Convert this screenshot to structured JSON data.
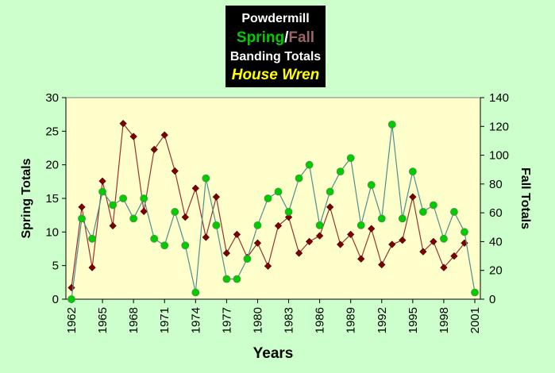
{
  "chart_data": {
    "type": "line",
    "title": {
      "line1": "Powdermill",
      "spring_word": "Spring",
      "separator": "/",
      "fall_word": "Fall",
      "line3": "Banding Totals",
      "species": "House Wren"
    },
    "xlabel": "Years",
    "ylabel_left": "Spring Totals",
    "ylabel_right": "Fall Totals",
    "x_tick_labels": [
      "1962",
      "1965",
      "1968",
      "1971",
      "1974",
      "1977",
      "1980",
      "1983",
      "1986",
      "1989",
      "1992",
      "1995",
      "1998",
      "2001"
    ],
    "x_tick_years": [
      1962,
      1965,
      1968,
      1971,
      1974,
      1977,
      1980,
      1983,
      1986,
      1989,
      1992,
      1995,
      1998,
      2001
    ],
    "y_left_ticks": [
      "0",
      "5",
      "10",
      "15",
      "20",
      "25",
      "30"
    ],
    "y_right_ticks": [
      "0",
      "20",
      "40",
      "60",
      "80",
      "100",
      "120",
      "140"
    ],
    "ylim_left": [
      0,
      30
    ],
    "ylim_right": [
      0,
      140
    ],
    "xlim": [
      1962,
      2001
    ],
    "grid": false,
    "legend": "none",
    "colors": {
      "background": "#ccffcc",
      "plot_area": "#ffffcc",
      "spring": "#00cc00",
      "spring_line": "#4d8f8f",
      "fall": "#800000",
      "fall_line": "#993333",
      "title_box": "#000000",
      "title_white": "#ffffff",
      "title_fall": "#996666",
      "title_species": "#ffff00"
    },
    "series": [
      {
        "key": "spring",
        "axis": "left",
        "values": [
          [
            1962,
            0
          ],
          [
            1963,
            12
          ],
          [
            1964,
            9
          ],
          [
            1965,
            16
          ],
          [
            1966,
            14
          ],
          [
            1967,
            15
          ],
          [
            1968,
            12
          ],
          [
            1969,
            15
          ],
          [
            1970,
            9
          ],
          [
            1971,
            8
          ],
          [
            1972,
            13
          ],
          [
            1973,
            8
          ],
          [
            1974,
            1
          ],
          [
            1975,
            18
          ],
          [
            1976,
            11
          ],
          [
            1977,
            3
          ],
          [
            1978,
            3
          ],
          [
            1979,
            6
          ],
          [
            1980,
            11
          ],
          [
            1981,
            15
          ],
          [
            1982,
            16
          ],
          [
            1983,
            13
          ],
          [
            1984,
            18
          ],
          [
            1985,
            20
          ],
          [
            1986,
            11
          ],
          [
            1987,
            16
          ],
          [
            1988,
            19
          ],
          [
            1989,
            21
          ],
          [
            1990,
            11
          ],
          [
            1991,
            17
          ],
          [
            1992,
            12
          ],
          [
            1993,
            26
          ],
          [
            1994,
            12
          ],
          [
            1995,
            19
          ],
          [
            1996,
            13
          ],
          [
            1997,
            14
          ],
          [
            1998,
            9
          ],
          [
            1999,
            13
          ],
          [
            2000,
            10
          ],
          [
            2001,
            1
          ]
        ]
      },
      {
        "key": "fall",
        "axis": "right",
        "values": [
          [
            1962,
            8
          ],
          [
            1963,
            64
          ],
          [
            1964,
            22
          ],
          [
            1965,
            82
          ],
          [
            1966,
            51
          ],
          [
            1967,
            122
          ],
          [
            1968,
            113
          ],
          [
            1969,
            61
          ],
          [
            1970,
            104
          ],
          [
            1971,
            114
          ],
          [
            1972,
            89
          ],
          [
            1973,
            57
          ],
          [
            1974,
            77
          ],
          [
            1975,
            43
          ],
          [
            1976,
            71
          ],
          [
            1977,
            32
          ],
          [
            1978,
            45
          ],
          [
            1979,
            29
          ],
          [
            1980,
            39
          ],
          [
            1981,
            23
          ],
          [
            1982,
            51
          ],
          [
            1983,
            57
          ],
          [
            1984,
            32
          ],
          [
            1985,
            40
          ],
          [
            1986,
            44
          ],
          [
            1987,
            64
          ],
          [
            1988,
            38
          ],
          [
            1989,
            45
          ],
          [
            1990,
            28
          ],
          [
            1991,
            49
          ],
          [
            1992,
            24
          ],
          [
            1993,
            38
          ],
          [
            1994,
            41
          ],
          [
            1995,
            71
          ],
          [
            1996,
            33
          ],
          [
            1997,
            40
          ],
          [
            1998,
            22
          ],
          [
            1999,
            30
          ],
          [
            2000,
            39
          ]
        ]
      }
    ]
  }
}
